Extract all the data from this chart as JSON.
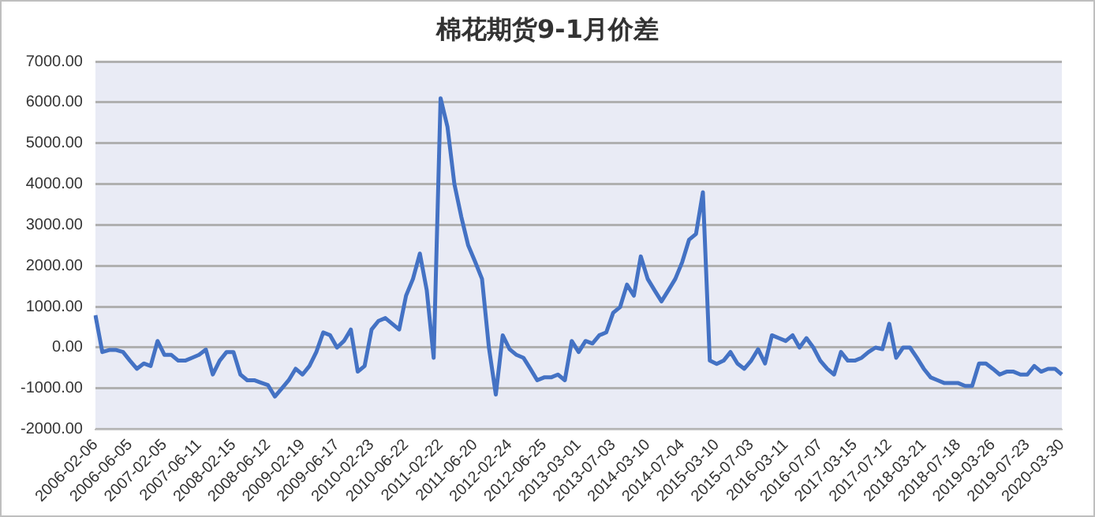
{
  "chart_data": {
    "type": "line",
    "title": "棉花期货9-1月价差",
    "categories": [
      "2006-02-06",
      null,
      null,
      null,
      null,
      "2006-06-05",
      null,
      null,
      null,
      null,
      "2007-02-05",
      null,
      null,
      null,
      null,
      "2007-06-11",
      null,
      null,
      null,
      null,
      "2008-02-15",
      null,
      null,
      null,
      null,
      "2008-06-12",
      null,
      null,
      null,
      null,
      "2009-02-19",
      null,
      null,
      null,
      null,
      "2009-06-17",
      null,
      null,
      null,
      null,
      "2010-02-23",
      null,
      null,
      null,
      null,
      "2010-06-22",
      null,
      null,
      null,
      null,
      "2011-02-22",
      null,
      null,
      null,
      null,
      "2011-06-20",
      null,
      null,
      null,
      null,
      "2012-02-24",
      null,
      null,
      null,
      null,
      "2012-06-25",
      null,
      null,
      null,
      null,
      "2013-03-01",
      null,
      null,
      null,
      null,
      "2013-07-03",
      null,
      null,
      null,
      null,
      "2014-03-10",
      null,
      null,
      null,
      null,
      "2014-07-04",
      null,
      null,
      null,
      null,
      "2015-03-10",
      null,
      null,
      null,
      null,
      "2015-07-03",
      null,
      null,
      null,
      null,
      "2016-03-11",
      null,
      null,
      null,
      null,
      "2016-07-07",
      null,
      null,
      null,
      null,
      "2017-03-15",
      null,
      null,
      null,
      null,
      "2017-07-12",
      null,
      null,
      null,
      null,
      "2018-03-21",
      null,
      null,
      null,
      null,
      "2018-07-18",
      null,
      null,
      null,
      null,
      "2019-03-26",
      null,
      null,
      null,
      null,
      "2019-07-23",
      null,
      null,
      null,
      null,
      "2020-03-30"
    ],
    "series": [
      {
        "color": "#4472c4",
        "values": [
          790,
          -110,
          -60,
          -60,
          -110,
          -320,
          -520,
          -390,
          -450,
          160,
          -180,
          -180,
          -320,
          -320,
          -250,
          -180,
          -50,
          -660,
          -320,
          -110,
          -110,
          -660,
          -800,
          -800,
          -860,
          -920,
          -1200,
          -1000,
          -800,
          -520,
          -660,
          -450,
          -110,
          370,
          300,
          0,
          160,
          440,
          -590,
          -450,
          440,
          650,
          720,
          580,
          440,
          1270,
          1680,
          2300,
          1400,
          -250,
          6100,
          5400,
          4000,
          3200,
          2500,
          2100,
          1680,
          0,
          -1150,
          300,
          -40,
          -180,
          -250,
          -520,
          -800,
          -730,
          -730,
          -660,
          -800,
          160,
          -110,
          160,
          100,
          300,
          370,
          850,
          990,
          1540,
          1270,
          2230,
          1680,
          1400,
          1130,
          1400,
          1680,
          2090,
          2640,
          2780,
          3800,
          -320,
          -400,
          -320,
          -110,
          -390,
          -520,
          -320,
          -40,
          -390,
          300,
          230,
          160,
          300,
          0,
          230,
          0,
          -320,
          -520,
          -660,
          -110,
          -320,
          -320,
          -250,
          -110,
          0,
          -40,
          580,
          -250,
          0,
          0,
          -250,
          -520,
          -730,
          -800,
          -870,
          -870,
          -870,
          -940,
          -940,
          -390,
          -390,
          -520,
          -660,
          -590,
          -590,
          -660,
          -660,
          -450,
          -590,
          -520,
          -520,
          -660
        ]
      }
    ],
    "ylim": [
      -2000,
      7000
    ],
    "yticks": [
      {
        "value": -2000,
        "label": "-2000.00"
      },
      {
        "value": -1000,
        "label": "-1000.00"
      },
      {
        "value": 0,
        "label": "0.00"
      },
      {
        "value": 1000,
        "label": "1000.00"
      },
      {
        "value": 2000,
        "label": "2000.00"
      },
      {
        "value": 3000,
        "label": "3000.00"
      },
      {
        "value": 4000,
        "label": "4000.00"
      },
      {
        "value": 5000,
        "label": "5000.00"
      },
      {
        "value": 6000,
        "label": "6000.00"
      },
      {
        "value": 7000,
        "label": "7000.00"
      }
    ],
    "grid": "y",
    "legend": false,
    "marker": "none",
    "line_style": "solid"
  }
}
